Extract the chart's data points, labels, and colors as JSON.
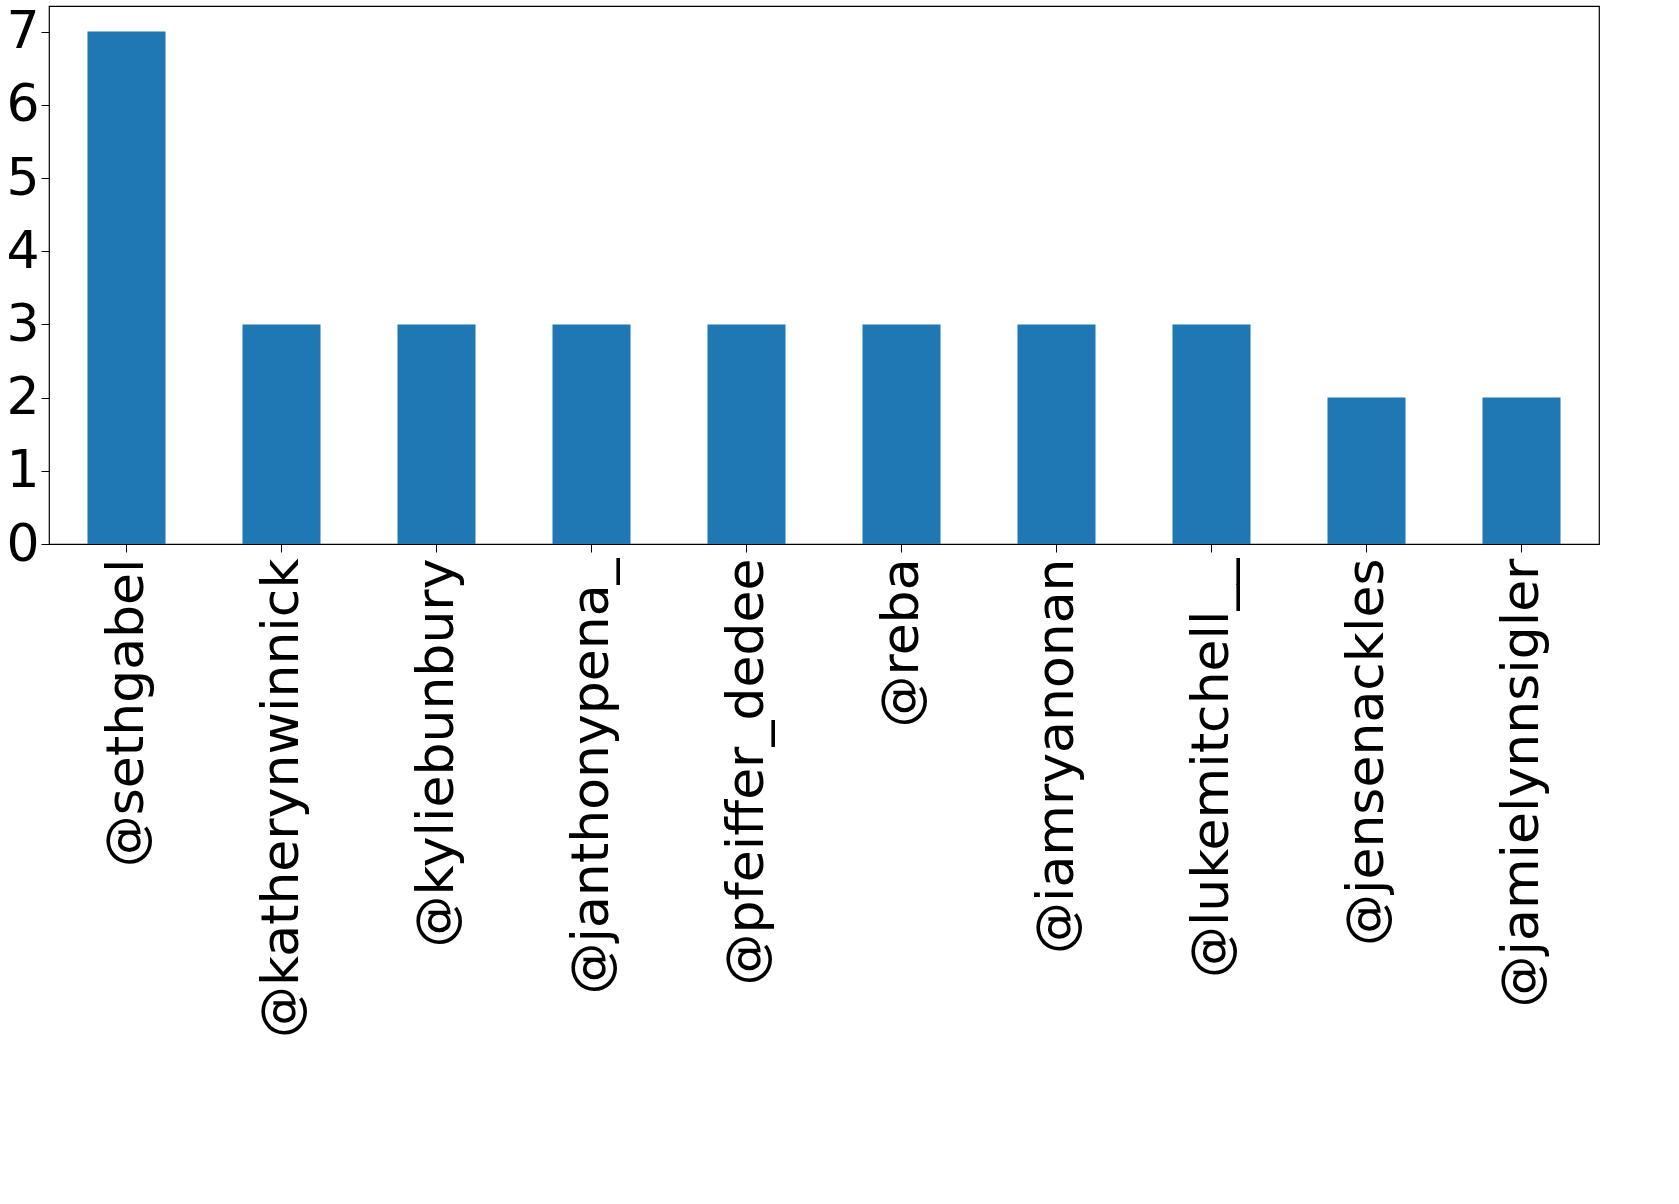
{
  "chart_data": {
    "type": "bar",
    "categories": [
      "@sethgabel",
      "@katherynwinnick",
      "@kyliebunbury",
      "@janthonypena_",
      "@pfeiffer_dedee",
      "@reba",
      "@iamryanonan",
      "@lukemitchell__",
      "@jensenackles",
      "@jamielynnsigler"
    ],
    "values": [
      7,
      3,
      3,
      3,
      3,
      3,
      3,
      3,
      2,
      2
    ],
    "color": "#1f77b4",
    "ylim": [
      0,
      7.35
    ],
    "yticks": [
      0,
      1,
      2,
      3,
      4,
      5,
      6,
      7
    ],
    "grid": false
  }
}
